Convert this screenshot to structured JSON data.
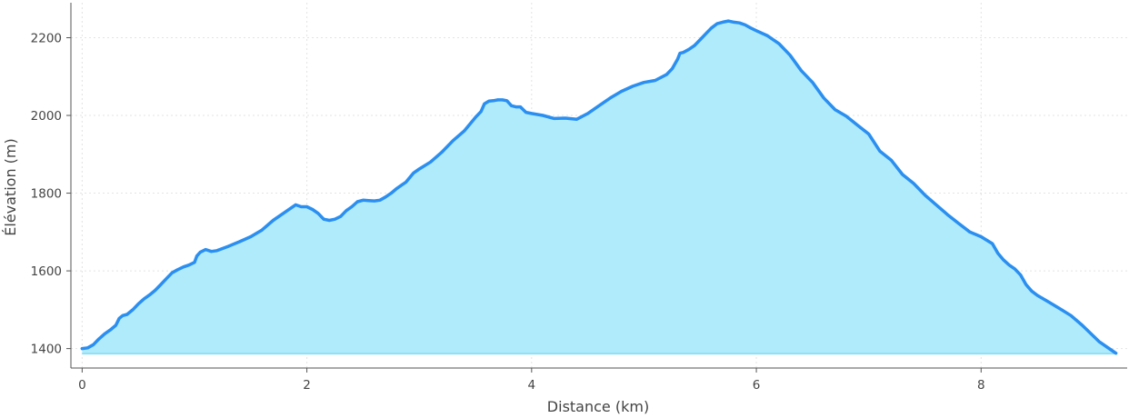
{
  "chart_data": {
    "type": "area",
    "title": "",
    "xlabel": "Distance (km)",
    "ylabel": "Élévation (m)",
    "xlim": [
      -0.1,
      9.3
    ],
    "ylim": [
      1350,
      2290
    ],
    "area_baseline": 1387,
    "x_ticks": [
      0,
      2,
      4,
      6,
      8
    ],
    "x_tick_labels": [
      "0",
      "2",
      "4",
      "6",
      "8"
    ],
    "y_ticks": [
      1400,
      1600,
      1800,
      2000,
      2200
    ],
    "y_tick_labels": [
      "1400",
      "1600",
      "1800",
      "2000",
      "2200"
    ],
    "grid": true,
    "legend": "none",
    "colors": {
      "line": "#2a8ff0",
      "fill": "#b0ebfb",
      "fill_edge": "#8ee0f6"
    },
    "series": [
      {
        "x": [
          0,
          0.05,
          0.1,
          0.15,
          0.2,
          0.25,
          0.3,
          0.33,
          0.36,
          0.4,
          0.45,
          0.5,
          0.55,
          0.6,
          0.65,
          0.7,
          0.75,
          0.8,
          0.85,
          0.9,
          0.95,
          1.0,
          1.02,
          1.05,
          1.1,
          1.15,
          1.2,
          1.3,
          1.4,
          1.5,
          1.6,
          1.7,
          1.8,
          1.86,
          1.9,
          1.95,
          2.0,
          2.05,
          2.1,
          2.15,
          2.2,
          2.25,
          2.3,
          2.35,
          2.4,
          2.45,
          2.5,
          2.55,
          2.6,
          2.65,
          2.7,
          2.75,
          2.8,
          2.85,
          2.88,
          2.9,
          2.95,
          3.0,
          3.1,
          3.2,
          3.3,
          3.4,
          3.5,
          3.55,
          3.58,
          3.62,
          3.66,
          3.7,
          3.74,
          3.78,
          3.82,
          3.86,
          3.9,
          3.95,
          4.0,
          4.1,
          4.2,
          4.3,
          4.4,
          4.5,
          4.6,
          4.7,
          4.8,
          4.9,
          5.0,
          5.1,
          5.2,
          5.25,
          5.3,
          5.32,
          5.35,
          5.4,
          5.45,
          5.5,
          5.55,
          5.6,
          5.65,
          5.7,
          5.75,
          5.8,
          5.85,
          5.9,
          5.95,
          6.0,
          6.1,
          6.2,
          6.3,
          6.4,
          6.5,
          6.6,
          6.7,
          6.8,
          6.9,
          7.0,
          7.1,
          7.2,
          7.3,
          7.4,
          7.5,
          7.6,
          7.7,
          7.8,
          7.9,
          8.0,
          8.1,
          8.15,
          8.2,
          8.25,
          8.3,
          8.35,
          8.4,
          8.45,
          8.5,
          8.6,
          8.7,
          8.8,
          8.9,
          9.0,
          9.05,
          9.1,
          9.15,
          9.2
        ],
        "y": [
          1400,
          1402,
          1410,
          1425,
          1438,
          1448,
          1460,
          1478,
          1485,
          1488,
          1500,
          1515,
          1528,
          1538,
          1550,
          1565,
          1580,
          1595,
          1603,
          1610,
          1615,
          1622,
          1638,
          1648,
          1655,
          1650,
          1652,
          1663,
          1675,
          1688,
          1705,
          1730,
          1750,
          1762,
          1770,
          1765,
          1765,
          1758,
          1748,
          1733,
          1730,
          1733,
          1740,
          1755,
          1765,
          1778,
          1782,
          1781,
          1780,
          1782,
          1790,
          1800,
          1812,
          1822,
          1828,
          1835,
          1852,
          1862,
          1880,
          1905,
          1935,
          1960,
          1995,
          2010,
          2030,
          2037,
          2038,
          2040,
          2040,
          2038,
          2025,
          2022,
          2022,
          2008,
          2005,
          2000,
          1992,
          1993,
          1990,
          2005,
          2025,
          2045,
          2062,
          2075,
          2085,
          2090,
          2105,
          2120,
          2145,
          2160,
          2162,
          2170,
          2180,
          2195,
          2210,
          2225,
          2236,
          2240,
          2243,
          2240,
          2238,
          2233,
          2225,
          2218,
          2205,
          2185,
          2155,
          2115,
          2085,
          2045,
          2015,
          1998,
          1975,
          1952,
          1908,
          1885,
          1848,
          1825,
          1795,
          1770,
          1745,
          1722,
          1700,
          1688,
          1670,
          1645,
          1628,
          1615,
          1605,
          1590,
          1565,
          1548,
          1537,
          1520,
          1503,
          1485,
          1460,
          1432,
          1418,
          1408,
          1398,
          1388
        ]
      }
    ]
  }
}
